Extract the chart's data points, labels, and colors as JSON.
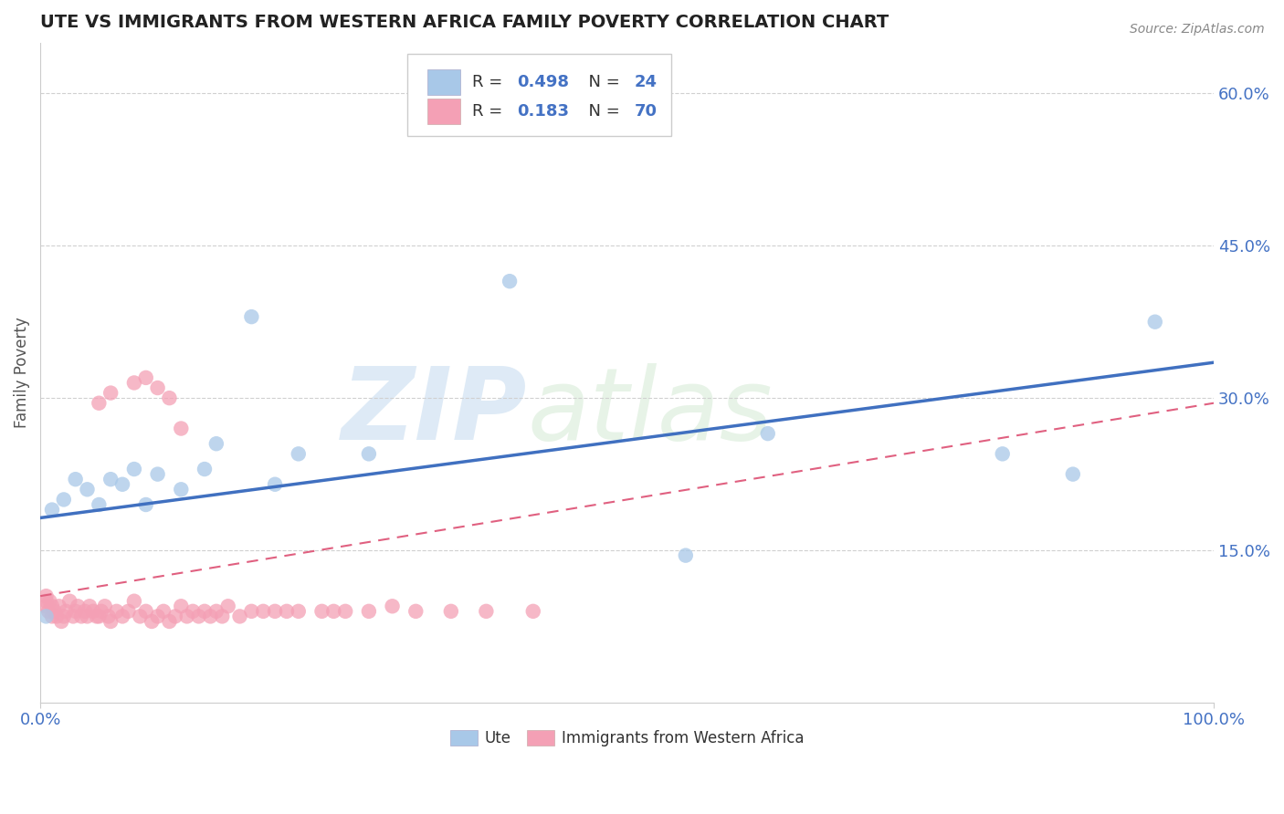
{
  "title": "UTE VS IMMIGRANTS FROM WESTERN AFRICA FAMILY POVERTY CORRELATION CHART",
  "source": "Source: ZipAtlas.com",
  "ylabel": "Family Poverty",
  "watermark_zip": "ZIP",
  "watermark_atlas": "atlas",
  "legend_r1": "0.498",
  "legend_n1": "24",
  "legend_r2": "0.183",
  "legend_n2": "70",
  "legend_label1": "Ute",
  "legend_label2": "Immigrants from Western Africa",
  "color_blue": "#a8c8e8",
  "color_pink": "#f4a0b5",
  "color_blue_line": "#4070c0",
  "color_pink_line": "#e06080",
  "xlim": [
    0.0,
    1.0
  ],
  "ylim": [
    0.0,
    0.65
  ],
  "yticks_right": [
    0.15,
    0.3,
    0.45,
    0.6
  ],
  "ytick_labels_right": [
    "15.0%",
    "30.0%",
    "45.0%",
    "60.0%"
  ],
  "ute_x": [
    0.005,
    0.01,
    0.02,
    0.03,
    0.04,
    0.05,
    0.06,
    0.07,
    0.08,
    0.09,
    0.1,
    0.12,
    0.14,
    0.15,
    0.18,
    0.2,
    0.22,
    0.28,
    0.4,
    0.55,
    0.62,
    0.82,
    0.88,
    0.95
  ],
  "ute_y": [
    0.085,
    0.19,
    0.2,
    0.22,
    0.21,
    0.195,
    0.22,
    0.215,
    0.23,
    0.195,
    0.225,
    0.21,
    0.23,
    0.255,
    0.38,
    0.215,
    0.245,
    0.245,
    0.415,
    0.145,
    0.265,
    0.245,
    0.225,
    0.375
  ],
  "imm_x": [
    0.005,
    0.005,
    0.005,
    0.007,
    0.008,
    0.01,
    0.01,
    0.012,
    0.014,
    0.016,
    0.018,
    0.02,
    0.022,
    0.025,
    0.028,
    0.03,
    0.032,
    0.035,
    0.038,
    0.04,
    0.042,
    0.045,
    0.048,
    0.05,
    0.052,
    0.055,
    0.058,
    0.06,
    0.065,
    0.07,
    0.075,
    0.08,
    0.085,
    0.09,
    0.095,
    0.1,
    0.105,
    0.11,
    0.115,
    0.12,
    0.125,
    0.13,
    0.135,
    0.14,
    0.145,
    0.15,
    0.155,
    0.16,
    0.17,
    0.18,
    0.19,
    0.2,
    0.21,
    0.22,
    0.24,
    0.25,
    0.26,
    0.28,
    0.3,
    0.32,
    0.35,
    0.38,
    0.42,
    0.1,
    0.08,
    0.06,
    0.09,
    0.11,
    0.05,
    0.12
  ],
  "imm_y": [
    0.1,
    0.105,
    0.095,
    0.09,
    0.1,
    0.085,
    0.095,
    0.09,
    0.085,
    0.095,
    0.08,
    0.085,
    0.09,
    0.1,
    0.085,
    0.09,
    0.095,
    0.085,
    0.09,
    0.085,
    0.095,
    0.09,
    0.085,
    0.085,
    0.09,
    0.095,
    0.085,
    0.08,
    0.09,
    0.085,
    0.09,
    0.1,
    0.085,
    0.09,
    0.08,
    0.085,
    0.09,
    0.08,
    0.085,
    0.095,
    0.085,
    0.09,
    0.085,
    0.09,
    0.085,
    0.09,
    0.085,
    0.095,
    0.085,
    0.09,
    0.09,
    0.09,
    0.09,
    0.09,
    0.09,
    0.09,
    0.09,
    0.09,
    0.095,
    0.09,
    0.09,
    0.09,
    0.09,
    0.31,
    0.315,
    0.305,
    0.32,
    0.3,
    0.295,
    0.27
  ],
  "ute_line_x0": 0.0,
  "ute_line_x1": 1.0,
  "ute_line_y0": 0.182,
  "ute_line_y1": 0.335,
  "imm_line_x0": 0.0,
  "imm_line_x1": 1.0,
  "imm_line_y0": 0.105,
  "imm_line_y1": 0.295
}
